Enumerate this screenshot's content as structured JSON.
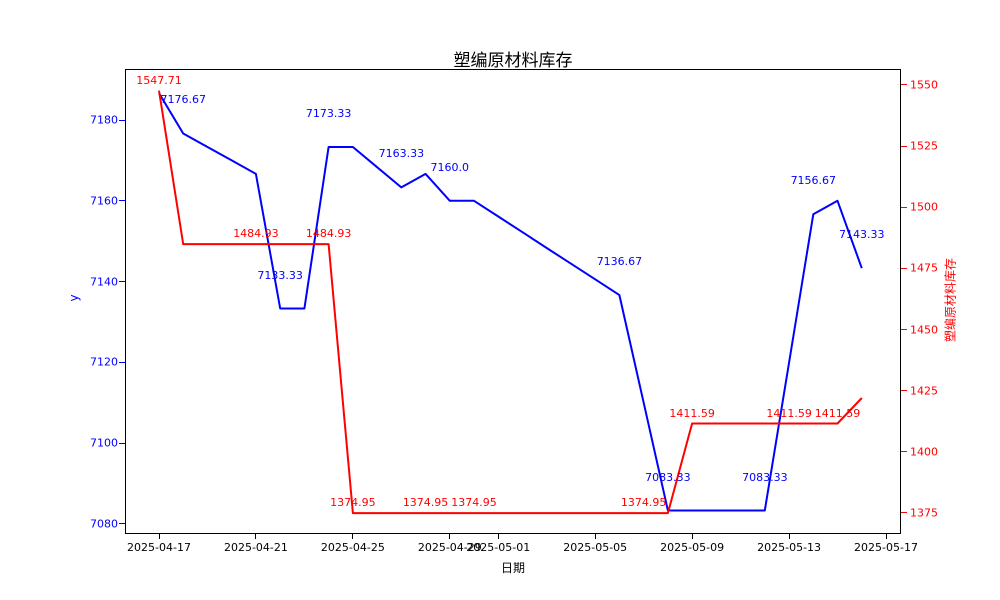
{
  "title": "塑编原材料库存",
  "xlabel": "日期",
  "colors": {
    "left_series": "#0000ff",
    "right_series": "#ff0000",
    "axes": "#000000",
    "background": "#ffffff"
  },
  "chart_data": {
    "type": "line",
    "title": "塑编原材料库存",
    "xlabel": "日期",
    "grid": false,
    "legend": "none",
    "x": [
      "2025-04-17",
      "2025-04-18",
      "2025-04-19",
      "2025-04-20",
      "2025-04-21",
      "2025-04-22",
      "2025-04-23",
      "2025-04-24",
      "2025-04-25",
      "2025-04-26",
      "2025-04-27",
      "2025-04-28",
      "2025-04-29",
      "2025-04-30",
      "2025-05-01",
      "2025-05-02",
      "2025-05-03",
      "2025-05-04",
      "2025-05-05",
      "2025-05-06",
      "2025-05-07",
      "2025-05-08",
      "2025-05-09",
      "2025-05-10",
      "2025-05-11",
      "2025-05-12",
      "2025-05-13",
      "2025-05-14",
      "2025-05-15",
      "2025-05-16"
    ],
    "series": [
      {
        "name": "y",
        "axis": "left",
        "color": "#0000ff",
        "values": [
          7186.67,
          7176.67,
          7173.33,
          7170.0,
          7166.67,
          7133.33,
          7133.33,
          7173.33,
          7173.33,
          7168.33,
          7163.33,
          7166.67,
          7160.0,
          7160.0,
          7156.11,
          7152.22,
          7148.33,
          7144.44,
          7140.56,
          7136.67,
          7110.0,
          7083.33,
          7083.33,
          7083.33,
          7083.33,
          7083.33,
          7120.0,
          7156.67,
          7160.0,
          7143.33
        ]
      },
      {
        "name": "塑编原材料库存",
        "axis": "right",
        "color": "#ff0000",
        "values": [
          1547.71,
          1484.93,
          1484.93,
          1484.93,
          1484.93,
          1484.93,
          1484.93,
          1484.93,
          1374.95,
          1374.95,
          1374.95,
          1374.95,
          1374.95,
          1374.95,
          1374.95,
          1374.95,
          1374.95,
          1374.95,
          1374.95,
          1374.95,
          1374.95,
          1374.95,
          1411.59,
          1411.59,
          1411.59,
          1411.59,
          1411.59,
          1411.59,
          1411.59,
          1422.0
        ]
      }
    ],
    "left_axis": {
      "label": "y",
      "ticks": [
        7080,
        7100,
        7120,
        7140,
        7160,
        7180
      ],
      "lim": [
        7077.77,
        7192.38
      ],
      "color": "#0000ff"
    },
    "right_axis": {
      "label": "塑编原材料库存",
      "ticks": [
        1375,
        1400,
        1425,
        1450,
        1475,
        1500,
        1525,
        1550
      ],
      "lim": [
        1366.82,
        1556.13
      ],
      "color": "#ff0000"
    },
    "x_axis": {
      "label": "日期",
      "lim_day_index": [
        -1.362,
        30.577
      ],
      "ticks": [
        {
          "label": "2025-04-17",
          "i": 0
        },
        {
          "label": "2025-04-21",
          "i": 4
        },
        {
          "label": "2025-04-25",
          "i": 8
        },
        {
          "label": "2025-04-29",
          "i": 12
        },
        {
          "label": "2025-05-01",
          "i": 14
        },
        {
          "label": "2025-05-05",
          "i": 18
        },
        {
          "label": "2025-05-09",
          "i": 22
        },
        {
          "label": "2025-05-13",
          "i": 26
        },
        {
          "label": "2025-05-17",
          "i": 30
        }
      ]
    },
    "annotations": [
      {
        "series": "left",
        "text": "7176.67",
        "i": 1,
        "v": 7176.67,
        "dy": -27
      },
      {
        "series": "left",
        "text": "7133.33",
        "i": 5,
        "v": 7133.33,
        "dy": -27
      },
      {
        "series": "left",
        "text": "7173.33",
        "i": 7,
        "v": 7173.33,
        "dy": -27
      },
      {
        "series": "left",
        "text": "7163.33",
        "i": 10,
        "v": 7163.33,
        "dy": -27
      },
      {
        "series": "left",
        "text": "7160.0",
        "i": 12,
        "v": 7160.0,
        "dy": -27
      },
      {
        "series": "left",
        "text": "7136.67",
        "i": 19,
        "v": 7136.67,
        "dy": -27
      },
      {
        "series": "left",
        "text": "7083.33",
        "i": 21,
        "v": 7083.33,
        "dy": -27
      },
      {
        "series": "left",
        "text": "7083.33",
        "i": 25,
        "v": 7083.33,
        "dy": -27
      },
      {
        "series": "left",
        "text": "7156.67",
        "i": 27,
        "v": 7156.67,
        "dy": -27
      },
      {
        "series": "left",
        "text": "7143.33",
        "i": 29,
        "v": 7143.33,
        "dy": -27
      },
      {
        "series": "right",
        "text": "1547.71",
        "i": 0,
        "v": 1547.71,
        "dy": -4
      },
      {
        "series": "right",
        "text": "1484.93",
        "i": 4,
        "v": 1484.93,
        "dy": -4
      },
      {
        "series": "right",
        "text": "1484.93",
        "i": 7,
        "v": 1484.93,
        "dy": -4
      },
      {
        "series": "right",
        "text": "1374.95",
        "i": 8,
        "v": 1374.95,
        "dy": -4
      },
      {
        "series": "right",
        "text": "1374.95",
        "i": 11,
        "v": 1374.95,
        "dy": -4
      },
      {
        "series": "right",
        "text": "1374.95",
        "i": 13,
        "v": 1374.95,
        "dy": -4
      },
      {
        "series": "right",
        "text": "1374.95",
        "i": 20,
        "v": 1374.95,
        "dy": -4
      },
      {
        "series": "right",
        "text": "1411.59",
        "i": 22,
        "v": 1411.59,
        "dy": -4
      },
      {
        "series": "right",
        "text": "1411.59",
        "i": 26,
        "v": 1411.59,
        "dy": -4
      },
      {
        "series": "right",
        "text": "1411.59",
        "i": 28,
        "v": 1411.59,
        "dy": -4
      }
    ]
  }
}
